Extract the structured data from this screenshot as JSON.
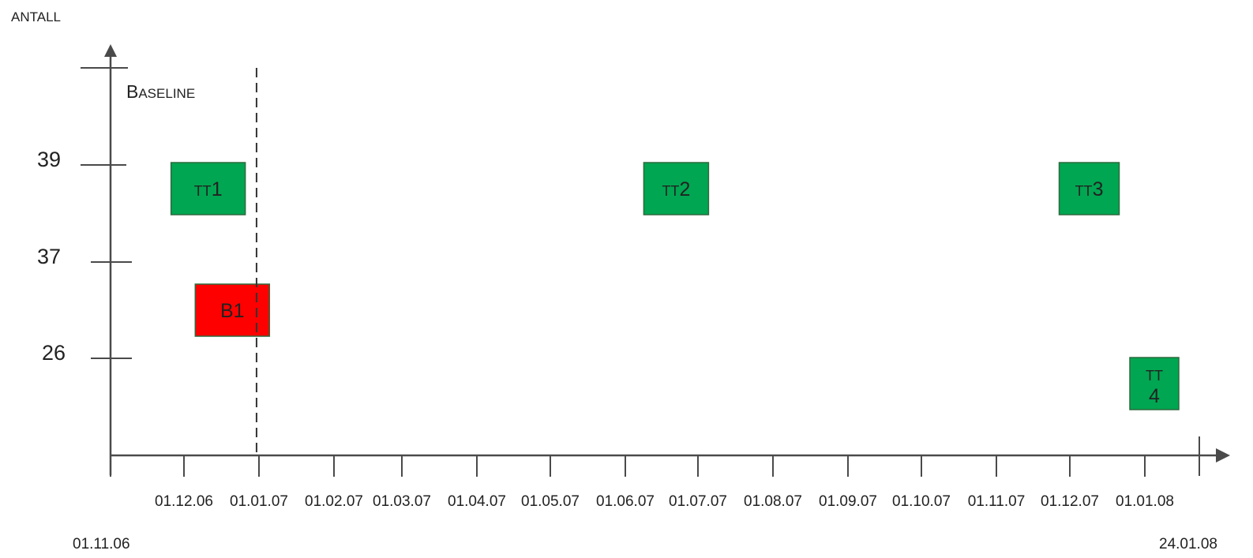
{
  "chart_data": {
    "type": "scatter",
    "ylabel": "ANTALL",
    "y_ticks": [
      39,
      37,
      26
    ],
    "x_ticks": [
      "01.12.06",
      "01.01.07",
      "01.02.07",
      "01.03.07",
      "01.04.07",
      "01.05.07",
      "01.06.07",
      "01.07.07",
      "01.08.07",
      "01.09.07",
      "01.10.07",
      "01.11.07",
      "01.12.07",
      "01.01.08"
    ],
    "x_range": [
      "01.11.06",
      "24.01.08"
    ],
    "baseline": {
      "label": "Baseline",
      "date": "31.12.06"
    },
    "points": [
      {
        "label": "TT1",
        "date": "11.12.06",
        "value": 39,
        "color": "#00a651"
      },
      {
        "label": "B1",
        "date": "21.12.06",
        "value": 37,
        "color": "#ff0000"
      },
      {
        "label": "TT2",
        "date": "22.06.07",
        "value": 39,
        "color": "#00a651"
      },
      {
        "label": "TT3",
        "date": "09.12.07",
        "value": 39,
        "color": "#00a651"
      },
      {
        "label": "TT4",
        "date": "05.01.08",
        "value": 26,
        "color": "#00a651"
      }
    ]
  }
}
